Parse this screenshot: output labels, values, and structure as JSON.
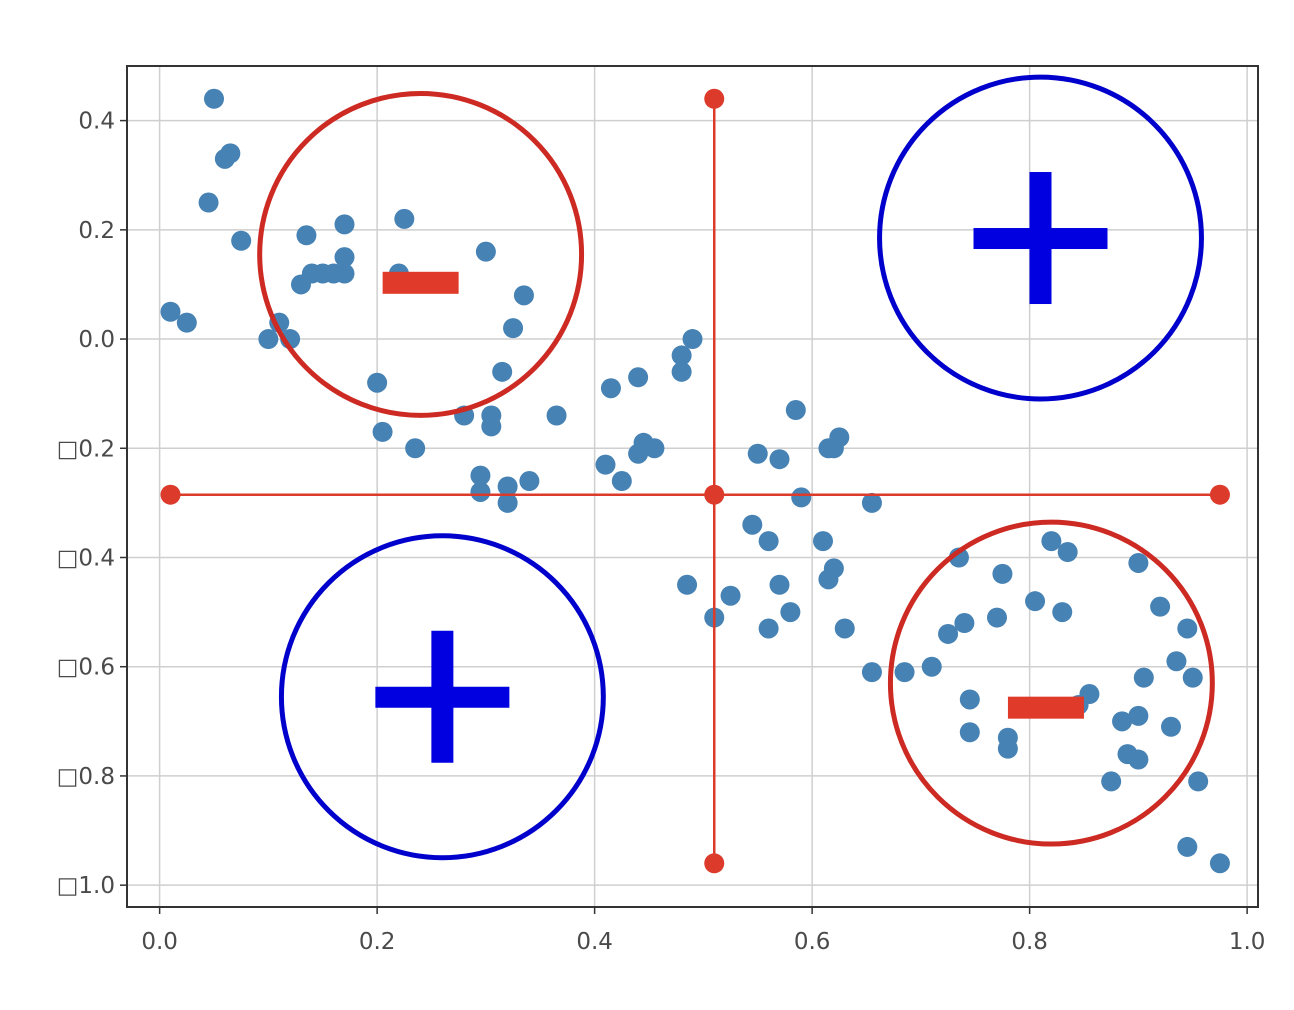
{
  "chart_data": {
    "type": "scatter",
    "title": "",
    "xlabel": "",
    "ylabel": "",
    "xlim": [
      -0.03,
      1.01
    ],
    "ylim": [
      -1.04,
      0.5
    ],
    "grid": true,
    "xticks": [
      {
        "value": 0.0,
        "label": "0.0"
      },
      {
        "value": 0.2,
        "label": "0.2"
      },
      {
        "value": 0.4,
        "label": "0.4"
      },
      {
        "value": 0.6,
        "label": "0.6"
      },
      {
        "value": 0.8,
        "label": "0.8"
      },
      {
        "value": 1.0,
        "label": "1.0"
      }
    ],
    "yticks": [
      {
        "value": 0.4,
        "label": "0.4"
      },
      {
        "value": 0.2,
        "label": "0.2"
      },
      {
        "value": 0.0,
        "label": "0.0"
      },
      {
        "value": -0.2,
        "label": "□0.2"
      },
      {
        "value": -0.4,
        "label": "□0.4"
      },
      {
        "value": -0.6,
        "label": "□0.6"
      },
      {
        "value": -0.8,
        "label": "□0.8"
      },
      {
        "value": -1.0,
        "label": "□1.0"
      }
    ],
    "series": [
      {
        "color": "#4682b4",
        "points": [
          [
            0.05,
            0.44
          ],
          [
            0.06,
            0.33
          ],
          [
            0.065,
            0.34
          ],
          [
            0.045,
            0.25
          ],
          [
            0.075,
            0.18
          ],
          [
            0.01,
            0.05
          ],
          [
            0.025,
            0.03
          ],
          [
            0.1,
            0.0
          ],
          [
            0.11,
            0.03
          ],
          [
            0.12,
            0.0
          ],
          [
            0.13,
            0.1
          ],
          [
            0.14,
            0.12
          ],
          [
            0.15,
            0.12
          ],
          [
            0.16,
            0.12
          ],
          [
            0.17,
            0.15
          ],
          [
            0.17,
            0.12
          ],
          [
            0.135,
            0.19
          ],
          [
            0.17,
            0.21
          ],
          [
            0.225,
            0.22
          ],
          [
            0.22,
            0.12
          ],
          [
            0.3,
            0.16
          ],
          [
            0.335,
            0.08
          ],
          [
            0.325,
            0.02
          ],
          [
            0.315,
            -0.06
          ],
          [
            0.2,
            -0.08
          ],
          [
            0.205,
            -0.17
          ],
          [
            0.235,
            -0.2
          ],
          [
            0.28,
            -0.14
          ],
          [
            0.305,
            -0.14
          ],
          [
            0.305,
            -0.16
          ],
          [
            0.295,
            -0.25
          ],
          [
            0.295,
            -0.28
          ],
          [
            0.32,
            -0.27
          ],
          [
            0.32,
            -0.3
          ],
          [
            0.34,
            -0.26
          ],
          [
            0.365,
            -0.14
          ],
          [
            0.41,
            -0.23
          ],
          [
            0.415,
            -0.09
          ],
          [
            0.425,
            -0.26
          ],
          [
            0.44,
            -0.07
          ],
          [
            0.44,
            -0.21
          ],
          [
            0.445,
            -0.19
          ],
          [
            0.455,
            -0.2
          ],
          [
            0.48,
            -0.03
          ],
          [
            0.48,
            -0.06
          ],
          [
            0.49,
            0.0
          ],
          [
            0.485,
            -0.45
          ],
          [
            0.51,
            -0.51
          ],
          [
            0.525,
            -0.47
          ],
          [
            0.545,
            -0.34
          ],
          [
            0.55,
            -0.21
          ],
          [
            0.56,
            -0.37
          ],
          [
            0.57,
            -0.22
          ],
          [
            0.57,
            -0.45
          ],
          [
            0.56,
            -0.53
          ],
          [
            0.58,
            -0.5
          ],
          [
            0.585,
            -0.13
          ],
          [
            0.59,
            -0.29
          ],
          [
            0.61,
            -0.37
          ],
          [
            0.615,
            -0.2
          ],
          [
            0.62,
            -0.2
          ],
          [
            0.62,
            -0.42
          ],
          [
            0.615,
            -0.44
          ],
          [
            0.625,
            -0.18
          ],
          [
            0.63,
            -0.53
          ],
          [
            0.655,
            -0.3
          ],
          [
            0.655,
            -0.61
          ],
          [
            0.685,
            -0.61
          ],
          [
            0.71,
            -0.6
          ],
          [
            0.725,
            -0.54
          ],
          [
            0.735,
            -0.4
          ],
          [
            0.74,
            -0.52
          ],
          [
            0.745,
            -0.66
          ],
          [
            0.745,
            -0.72
          ],
          [
            0.77,
            -0.51
          ],
          [
            0.775,
            -0.43
          ],
          [
            0.78,
            -0.73
          ],
          [
            0.78,
            -0.75
          ],
          [
            0.805,
            -0.48
          ],
          [
            0.82,
            -0.37
          ],
          [
            0.83,
            -0.5
          ],
          [
            0.835,
            -0.39
          ],
          [
            0.845,
            -0.67
          ],
          [
            0.855,
            -0.65
          ],
          [
            0.875,
            -0.81
          ],
          [
            0.885,
            -0.7
          ],
          [
            0.9,
            -0.69
          ],
          [
            0.89,
            -0.76
          ],
          [
            0.9,
            -0.77
          ],
          [
            0.905,
            -0.62
          ],
          [
            0.9,
            -0.41
          ],
          [
            0.92,
            -0.49
          ],
          [
            0.93,
            -0.71
          ],
          [
            0.935,
            -0.59
          ],
          [
            0.945,
            -0.53
          ],
          [
            0.95,
            -0.62
          ],
          [
            0.955,
            -0.81
          ],
          [
            0.945,
            -0.93
          ],
          [
            0.975,
            -0.96
          ]
        ]
      }
    ],
    "overlays": {
      "cross": {
        "color": "#dc3a2a",
        "horizontal": {
          "x": [
            0.01,
            0.975
          ],
          "y": -0.285
        },
        "vertical": {
          "x": 0.51,
          "y": [
            0.44,
            -0.96
          ]
        }
      },
      "circles": [
        {
          "center": [
            0.24,
            0.155
          ],
          "radius": 0.148,
          "color": "#cc2a22",
          "sign": "−",
          "sign_color": "#e03a2a",
          "sign_center": [
            0.24,
            0.103
          ]
        },
        {
          "center": [
            0.81,
            0.185
          ],
          "radius": 0.148,
          "color": "#0000cc",
          "sign": "+",
          "sign_color": "#0000e0",
          "sign_center": [
            0.81,
            0.185
          ]
        },
        {
          "center": [
            0.26,
            -0.655
          ],
          "radius": 0.148,
          "color": "#0000cc",
          "sign": "+",
          "sign_color": "#0000e0",
          "sign_center": [
            0.26,
            -0.655
          ]
        },
        {
          "center": [
            0.82,
            -0.63
          ],
          "radius": 0.148,
          "color": "#cc2a22",
          "sign": "−",
          "sign_color": "#e03a2a",
          "sign_center": [
            0.815,
            -0.675
          ]
        }
      ]
    }
  }
}
